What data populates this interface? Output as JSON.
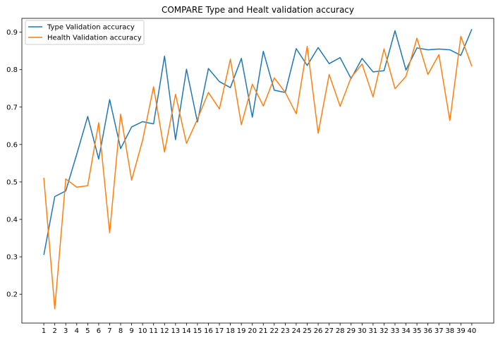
{
  "chart_data": {
    "type": "line",
    "title": "COMPARE Type and Healt validation accuracy",
    "xlabel": "",
    "ylabel": "",
    "x": [
      1,
      2,
      3,
      4,
      5,
      6,
      7,
      8,
      9,
      10,
      11,
      12,
      13,
      14,
      15,
      16,
      17,
      18,
      19,
      20,
      21,
      22,
      23,
      24,
      25,
      26,
      27,
      28,
      29,
      30,
      31,
      32,
      33,
      34,
      35,
      36,
      37,
      38,
      39,
      40
    ],
    "xlim": [
      -1,
      42
    ],
    "ylim": [
      0.123,
      0.937
    ],
    "yticks": [
      0.2,
      0.3,
      0.4,
      0.5,
      0.6,
      0.7,
      0.8,
      0.9
    ],
    "grid": false,
    "legend_position": "upper-left",
    "series": [
      {
        "name": "Type Validation accuracy",
        "color": "#1f77b4",
        "values": [
          0.305,
          0.461,
          0.476,
          0.574,
          0.675,
          0.561,
          0.72,
          0.589,
          0.647,
          0.661,
          0.655,
          0.836,
          0.613,
          0.801,
          0.66,
          0.803,
          0.768,
          0.752,
          0.83,
          0.673,
          0.849,
          0.745,
          0.739,
          0.856,
          0.811,
          0.859,
          0.816,
          0.832,
          0.776,
          0.83,
          0.794,
          0.797,
          0.904,
          0.799,
          0.858,
          0.853,
          0.855,
          0.853,
          0.838,
          0.908
        ]
      },
      {
        "name": "Health Validation accuracy",
        "color": "#ff7f0e",
        "values": [
          0.511,
          0.161,
          0.508,
          0.486,
          0.49,
          0.658,
          0.364,
          0.681,
          0.505,
          0.611,
          0.754,
          0.58,
          0.734,
          0.603,
          0.668,
          0.739,
          0.695,
          0.828,
          0.653,
          0.761,
          0.703,
          0.778,
          0.739,
          0.682,
          0.862,
          0.63,
          0.787,
          0.702,
          0.779,
          0.815,
          0.727,
          0.855,
          0.749,
          0.782,
          0.884,
          0.787,
          0.84,
          0.664,
          0.889,
          0.809
        ]
      }
    ]
  }
}
